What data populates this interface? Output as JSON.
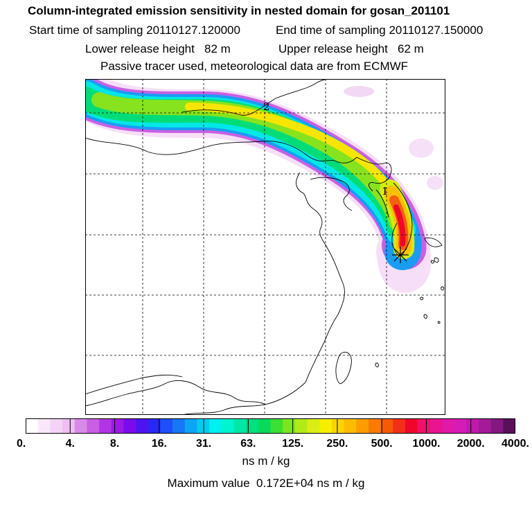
{
  "header": {
    "title": "Column-integrated emission sensitivity in nested domain for gosan_201101",
    "start_sampling": "Start time of sampling 20110127.120000",
    "end_sampling": "End time of sampling 20110127.150000",
    "lower_release": "Lower release height   82 m",
    "upper_release": "Upper release height   62 m",
    "tracer_note": "Passive tracer used, meteorological data are from ECMWF"
  },
  "map": {
    "markers": [
      {
        "label": "2"
      },
      {
        "label": "1"
      }
    ],
    "receptor_symbol": "star-icon"
  },
  "colorbar": {
    "tick_labels": [
      "0.",
      "4.",
      "8.",
      "16.",
      "31.",
      "63.",
      "125.",
      "250.",
      "500.",
      "1000.",
      "2000.",
      "4000."
    ],
    "colors": [
      "#ffffff",
      "#fbe7fb",
      "#f4d3f6",
      "#eebff2",
      "#d98ae8",
      "#c95fe3",
      "#b235e3",
      "#9d18e6",
      "#7a0bea",
      "#4d14f0",
      "#2828f5",
      "#1f4ff8",
      "#1778f7",
      "#0ea4f5",
      "#00cdf2",
      "#00f0ef",
      "#00f4cf",
      "#00e8a8",
      "#00df80",
      "#08d95a",
      "#3be033",
      "#7de41f",
      "#b2ea18",
      "#d8ee14",
      "#f7ef00",
      "#fcd500",
      "#fdbb00",
      "#fb9d00",
      "#f97c00",
      "#f55a07",
      "#f2301a",
      "#f0062a",
      "#f0106a",
      "#ea1490",
      "#e01aa8",
      "#d61bb7",
      "#c01aab",
      "#a31b97",
      "#831980",
      "#5a0f5a"
    ],
    "unit": "ns m / kg"
  },
  "footer": {
    "max_value": "Maximum value  0.172E+04 ns m / kg"
  }
}
